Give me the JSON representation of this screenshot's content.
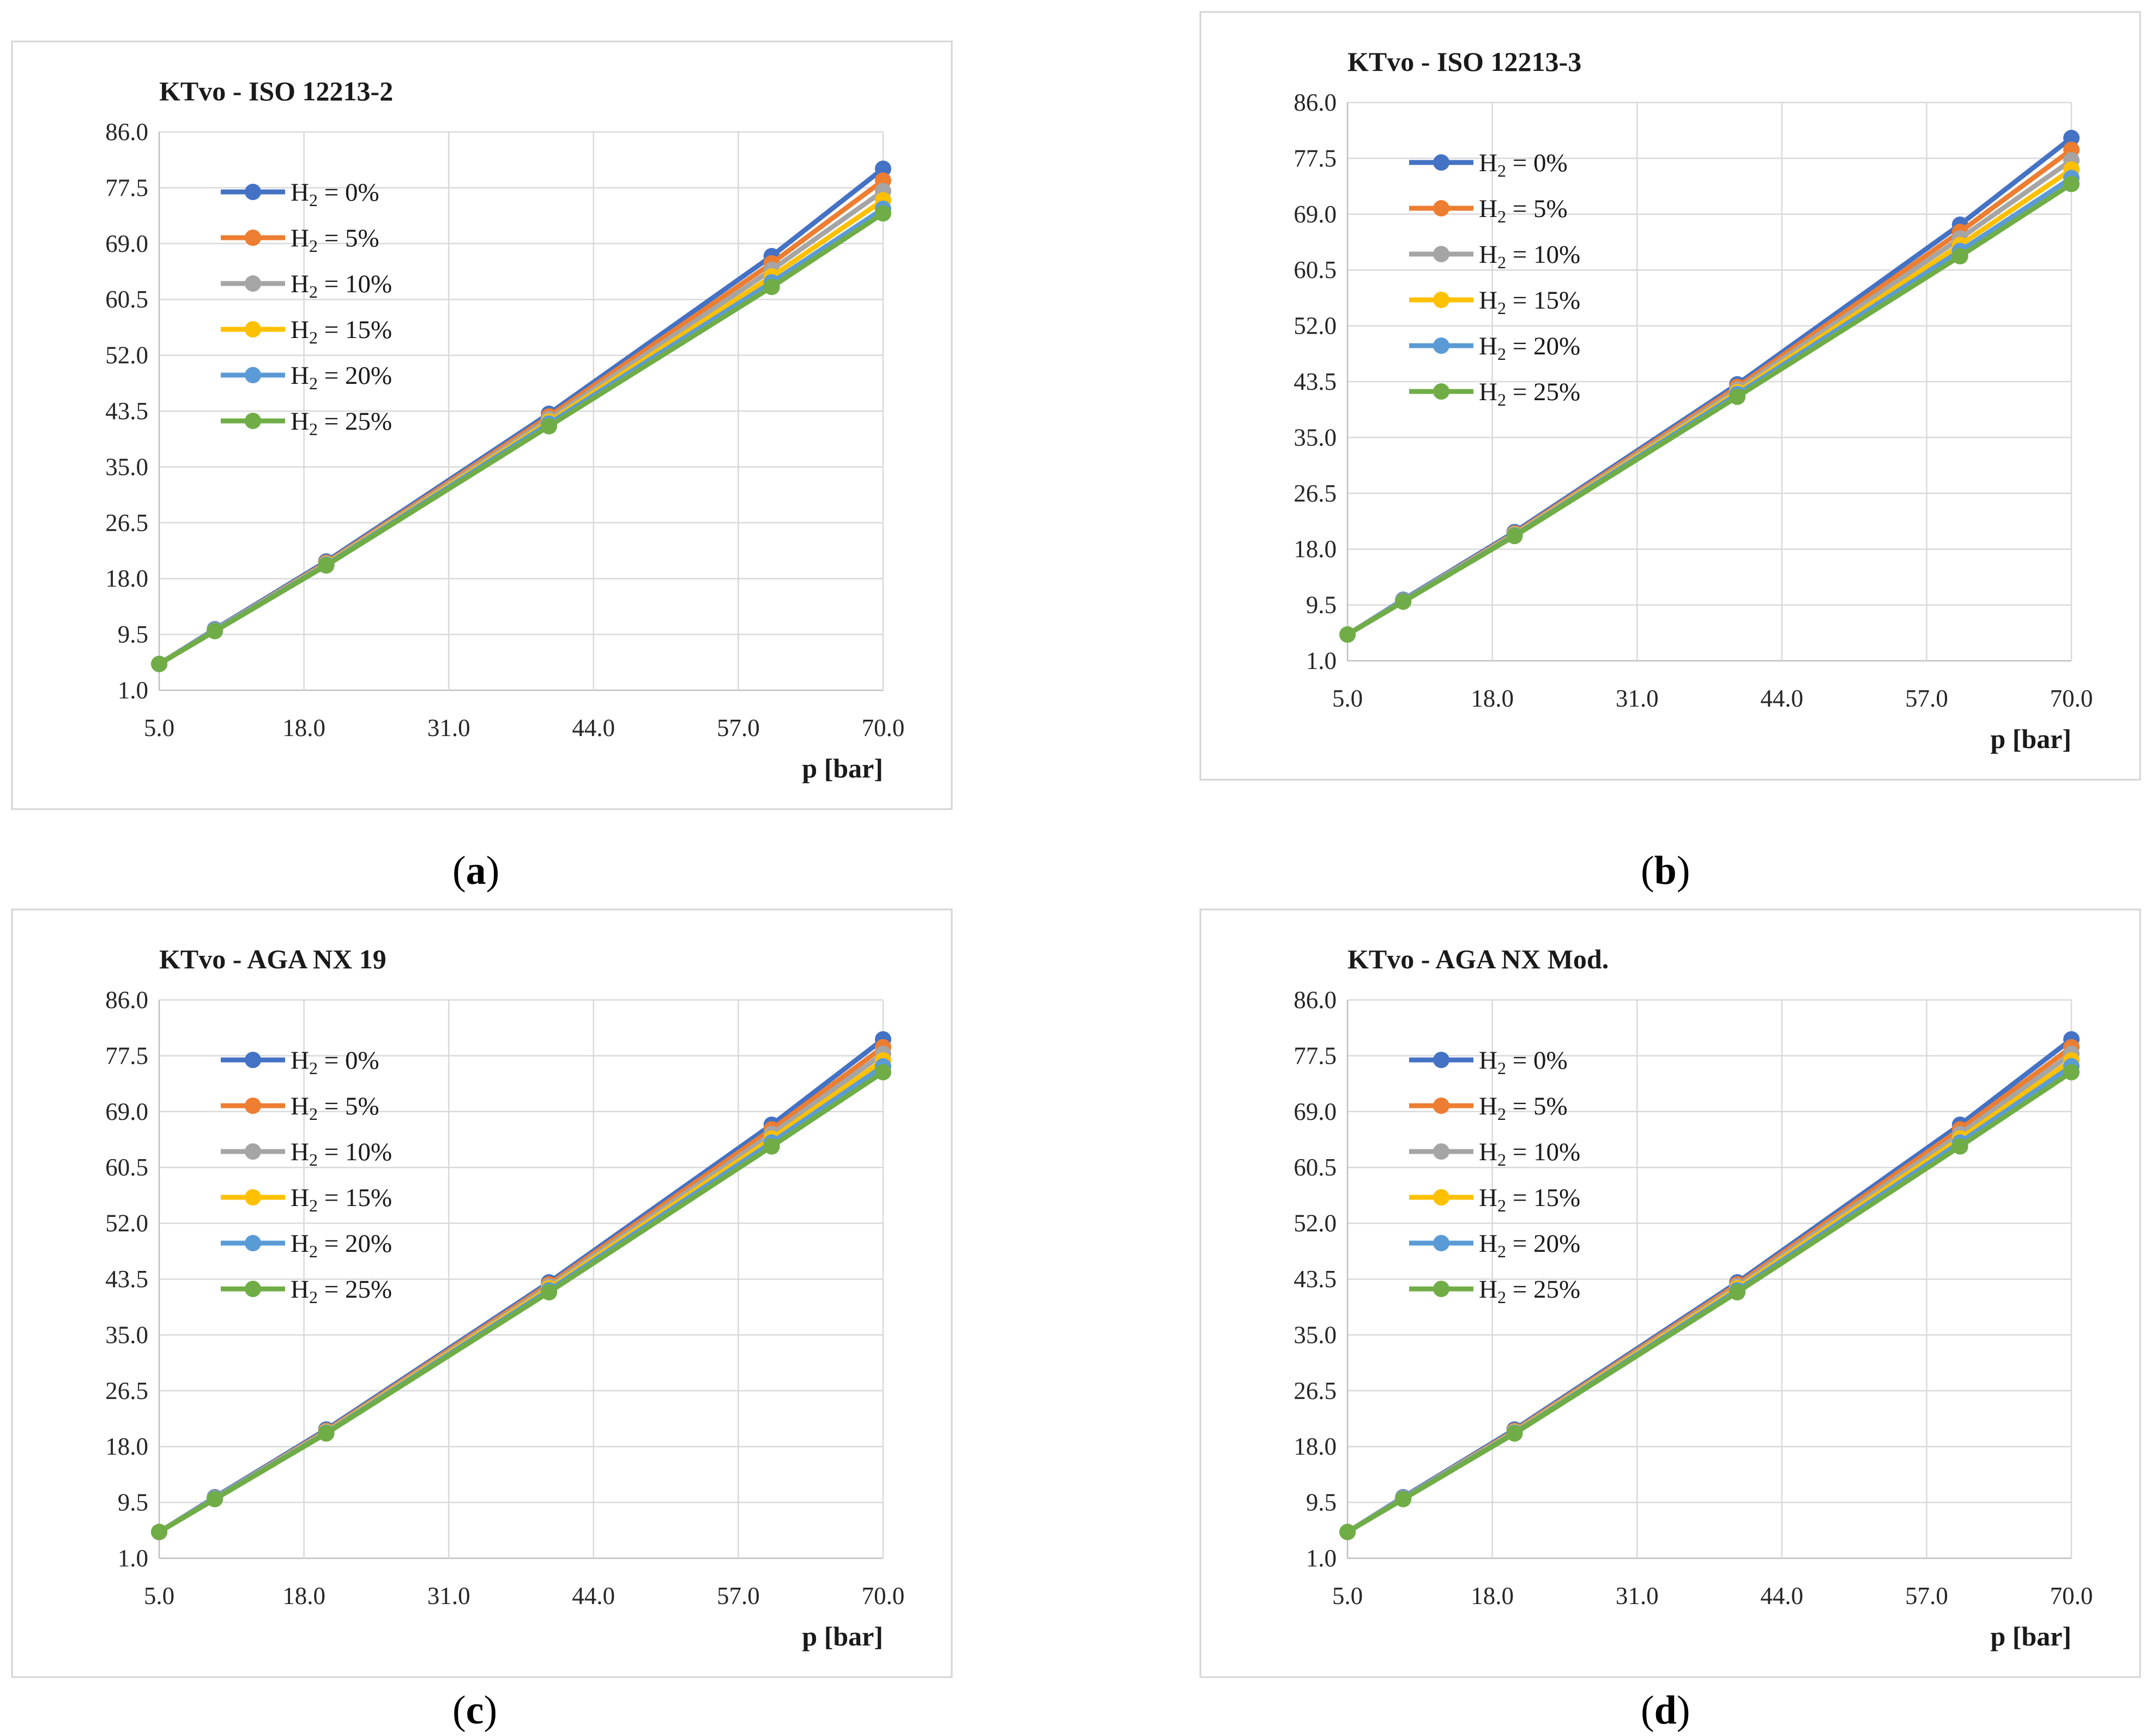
{
  "chart_data": [
    {
      "id": "a",
      "type": "line",
      "title": "KTvo  - ISO 12213-2",
      "xlabel": "p [bar]",
      "ylabel": "",
      "xlim": [
        5.0,
        70.0
      ],
      "ylim": [
        1.0,
        86.0
      ],
      "xticks": [
        "5.0",
        "18.0",
        "31.0",
        "44.0",
        "57.0",
        "70.0"
      ],
      "yticks": [
        "1.0",
        "9.5",
        "18.0",
        "26.5",
        "35.0",
        "43.5",
        "52.0",
        "60.5",
        "69.0",
        "77.5",
        "86.0"
      ],
      "legend_position": "upper-left",
      "x": [
        5,
        10,
        20,
        40,
        60,
        70
      ],
      "series": [
        {
          "name": "H2 = 0%",
          "label_main": "H",
          "label_sub": "2",
          "label_rest": " = 0%",
          "color": "#4472C4",
          "values": [
            5.0,
            10.3,
            20.6,
            43.1,
            67.1,
            80.4
          ]
        },
        {
          "name": "H2 = 5%",
          "label_main": "H",
          "label_sub": "2",
          "label_rest": " = 5%",
          "color": "#ED7D31",
          "values": [
            5.0,
            10.2,
            20.4,
            42.7,
            66.0,
            78.6
          ]
        },
        {
          "name": "H2 = 10%",
          "label_main": "H",
          "label_sub": "2",
          "label_rest": " = 10%",
          "color": "#A5A5A5",
          "values": [
            5.0,
            10.2,
            20.3,
            42.3,
            65.0,
            77.0
          ]
        },
        {
          "name": "H2 = 15%",
          "label_main": "H",
          "label_sub": "2",
          "label_rest": " = 15%",
          "color": "#FFC000",
          "values": [
            5.0,
            10.1,
            20.2,
            41.9,
            64.0,
            75.6
          ]
        },
        {
          "name": "H2 = 20%",
          "label_main": "H",
          "label_sub": "2",
          "label_rest": " = 20%",
          "color": "#5B9BD5",
          "values": [
            5.0,
            10.1,
            20.1,
            41.6,
            63.1,
            74.3
          ]
        },
        {
          "name": "H2 = 25%",
          "label_main": "H",
          "label_sub": "2",
          "label_rest": " = 25%",
          "color": "#70AD47",
          "values": [
            5.0,
            10.0,
            20.0,
            41.2,
            62.4,
            73.6
          ]
        }
      ]
    },
    {
      "id": "b",
      "type": "line",
      "title": "KTvo  - ISO 12213-3",
      "xlabel": "p [bar]",
      "ylabel": "",
      "xlim": [
        5.0,
        70.0
      ],
      "ylim": [
        1.0,
        86.0
      ],
      "xticks": [
        "5.0",
        "18.0",
        "31.0",
        "44.0",
        "57.0",
        "70.0"
      ],
      "yticks": [
        "1.0",
        "9.5",
        "18.0",
        "26.5",
        "35.0",
        "43.5",
        "52.0",
        "60.5",
        "69.0",
        "77.5",
        "86.0"
      ],
      "legend_position": "upper-left",
      "x": [
        5,
        10,
        20,
        40,
        60,
        70
      ],
      "series": [
        {
          "name": "H2 = 0%",
          "label_main": "H",
          "label_sub": "2",
          "label_rest": " = 0%",
          "color": "#4472C4",
          "values": [
            5.0,
            10.3,
            20.6,
            43.1,
            67.4,
            80.6
          ]
        },
        {
          "name": "H2 = 5%",
          "label_main": "H",
          "label_sub": "2",
          "label_rest": " = 5%",
          "color": "#ED7D31",
          "values": [
            5.0,
            10.2,
            20.4,
            42.7,
            66.3,
            78.8
          ]
        },
        {
          "name": "H2 = 10%",
          "label_main": "H",
          "label_sub": "2",
          "label_rest": " = 10%",
          "color": "#A5A5A5",
          "values": [
            5.0,
            10.2,
            20.3,
            42.3,
            65.3,
            77.2
          ]
        },
        {
          "name": "H2 = 15%",
          "label_main": "H",
          "label_sub": "2",
          "label_rest": " = 15%",
          "color": "#FFC000",
          "values": [
            5.0,
            10.1,
            20.2,
            41.9,
            64.3,
            75.8
          ]
        },
        {
          "name": "H2 = 20%",
          "label_main": "H",
          "label_sub": "2",
          "label_rest": " = 20%",
          "color": "#5B9BD5",
          "values": [
            5.0,
            10.1,
            20.1,
            41.6,
            63.4,
            74.5
          ]
        },
        {
          "name": "H2 = 25%",
          "label_main": "H",
          "label_sub": "2",
          "label_rest": " = 25%",
          "color": "#70AD47",
          "values": [
            5.0,
            10.0,
            20.0,
            41.2,
            62.6,
            73.6
          ]
        }
      ]
    },
    {
      "id": "c",
      "type": "line",
      "title": "KTvo  - AGA NX 19",
      "xlabel": "p [bar]",
      "ylabel": "",
      "xlim": [
        5.0,
        70.0
      ],
      "ylim": [
        1.0,
        86.0
      ],
      "xticks": [
        "5.0",
        "18.0",
        "31.0",
        "44.0",
        "57.0",
        "70.0"
      ],
      "yticks": [
        "1.0",
        "9.5",
        "18.0",
        "26.5",
        "35.0",
        "43.5",
        "52.0",
        "60.5",
        "69.0",
        "77.5",
        "86.0"
      ],
      "legend_position": "upper-left",
      "x": [
        5,
        10,
        20,
        40,
        60,
        70
      ],
      "series": [
        {
          "name": "H2 = 0%",
          "label_main": "H",
          "label_sub": "2",
          "label_rest": " = 0%",
          "color": "#4472C4",
          "values": [
            5.0,
            10.3,
            20.6,
            43.0,
            67.0,
            80.0
          ]
        },
        {
          "name": "H2 = 5%",
          "label_main": "H",
          "label_sub": "2",
          "label_rest": " = 5%",
          "color": "#ED7D31",
          "values": [
            5.0,
            10.2,
            20.4,
            42.7,
            66.3,
            78.8
          ]
        },
        {
          "name": "H2 = 10%",
          "label_main": "H",
          "label_sub": "2",
          "label_rest": " = 10%",
          "color": "#A5A5A5",
          "values": [
            5.0,
            10.2,
            20.3,
            42.4,
            65.6,
            77.8
          ]
        },
        {
          "name": "H2 = 15%",
          "label_main": "H",
          "label_sub": "2",
          "label_rest": " = 15%",
          "color": "#FFC000",
          "values": [
            5.0,
            10.1,
            20.2,
            42.1,
            64.9,
            76.8
          ]
        },
        {
          "name": "H2 = 20%",
          "label_main": "H",
          "label_sub": "2",
          "label_rest": " = 20%",
          "color": "#5B9BD5",
          "values": [
            5.0,
            10.1,
            20.1,
            41.8,
            64.3,
            75.9
          ]
        },
        {
          "name": "H2 = 25%",
          "label_main": "H",
          "label_sub": "2",
          "label_rest": " = 25%",
          "color": "#70AD47",
          "values": [
            5.0,
            10.0,
            20.0,
            41.5,
            63.7,
            75.0
          ]
        }
      ]
    },
    {
      "id": "d",
      "type": "line",
      "title": "KTvo  - AGA NX Mod.",
      "xlabel": "p [bar]",
      "ylabel": "",
      "xlim": [
        5.0,
        70.0
      ],
      "ylim": [
        1.0,
        86.0
      ],
      "xticks": [
        "5.0",
        "18.0",
        "31.0",
        "44.0",
        "57.0",
        "70.0"
      ],
      "yticks": [
        "1.0",
        "9.5",
        "18.0",
        "26.5",
        "35.0",
        "43.5",
        "52.0",
        "60.5",
        "69.0",
        "77.5",
        "86.0"
      ],
      "legend_position": "upper-left",
      "x": [
        5,
        10,
        20,
        40,
        60,
        70
      ],
      "series": [
        {
          "name": "H2 = 0%",
          "label_main": "H",
          "label_sub": "2",
          "label_rest": " = 0%",
          "color": "#4472C4",
          "values": [
            5.0,
            10.3,
            20.6,
            43.0,
            67.0,
            80.0
          ]
        },
        {
          "name": "H2 = 5%",
          "label_main": "H",
          "label_sub": "2",
          "label_rest": " = 5%",
          "color": "#ED7D31",
          "values": [
            5.0,
            10.2,
            20.4,
            42.7,
            66.3,
            78.8
          ]
        },
        {
          "name": "H2 = 10%",
          "label_main": "H",
          "label_sub": "2",
          "label_rest": " = 10%",
          "color": "#A5A5A5",
          "values": [
            5.0,
            10.2,
            20.3,
            42.4,
            65.6,
            77.8
          ]
        },
        {
          "name": "H2 = 15%",
          "label_main": "H",
          "label_sub": "2",
          "label_rest": " = 15%",
          "color": "#FFC000",
          "values": [
            5.0,
            10.1,
            20.2,
            42.1,
            64.9,
            76.8
          ]
        },
        {
          "name": "H2 = 20%",
          "label_main": "H",
          "label_sub": "2",
          "label_rest": " = 20%",
          "color": "#5B9BD5",
          "values": [
            5.0,
            10.1,
            20.1,
            41.8,
            64.3,
            75.9
          ]
        },
        {
          "name": "H2 = 25%",
          "label_main": "H",
          "label_sub": "2",
          "label_rest": " = 25%",
          "color": "#70AD47",
          "values": [
            5.0,
            10.0,
            20.0,
            41.5,
            63.7,
            75.0
          ]
        }
      ]
    }
  ],
  "captions": {
    "a": {
      "open": "(",
      "letter": "a",
      "close": ")"
    },
    "b": {
      "open": "(",
      "letter": "b",
      "close": ")"
    },
    "c": {
      "open": "(",
      "letter": "c",
      "close": ")"
    },
    "d": {
      "open": "(",
      "letter": "d",
      "close": ")"
    }
  }
}
